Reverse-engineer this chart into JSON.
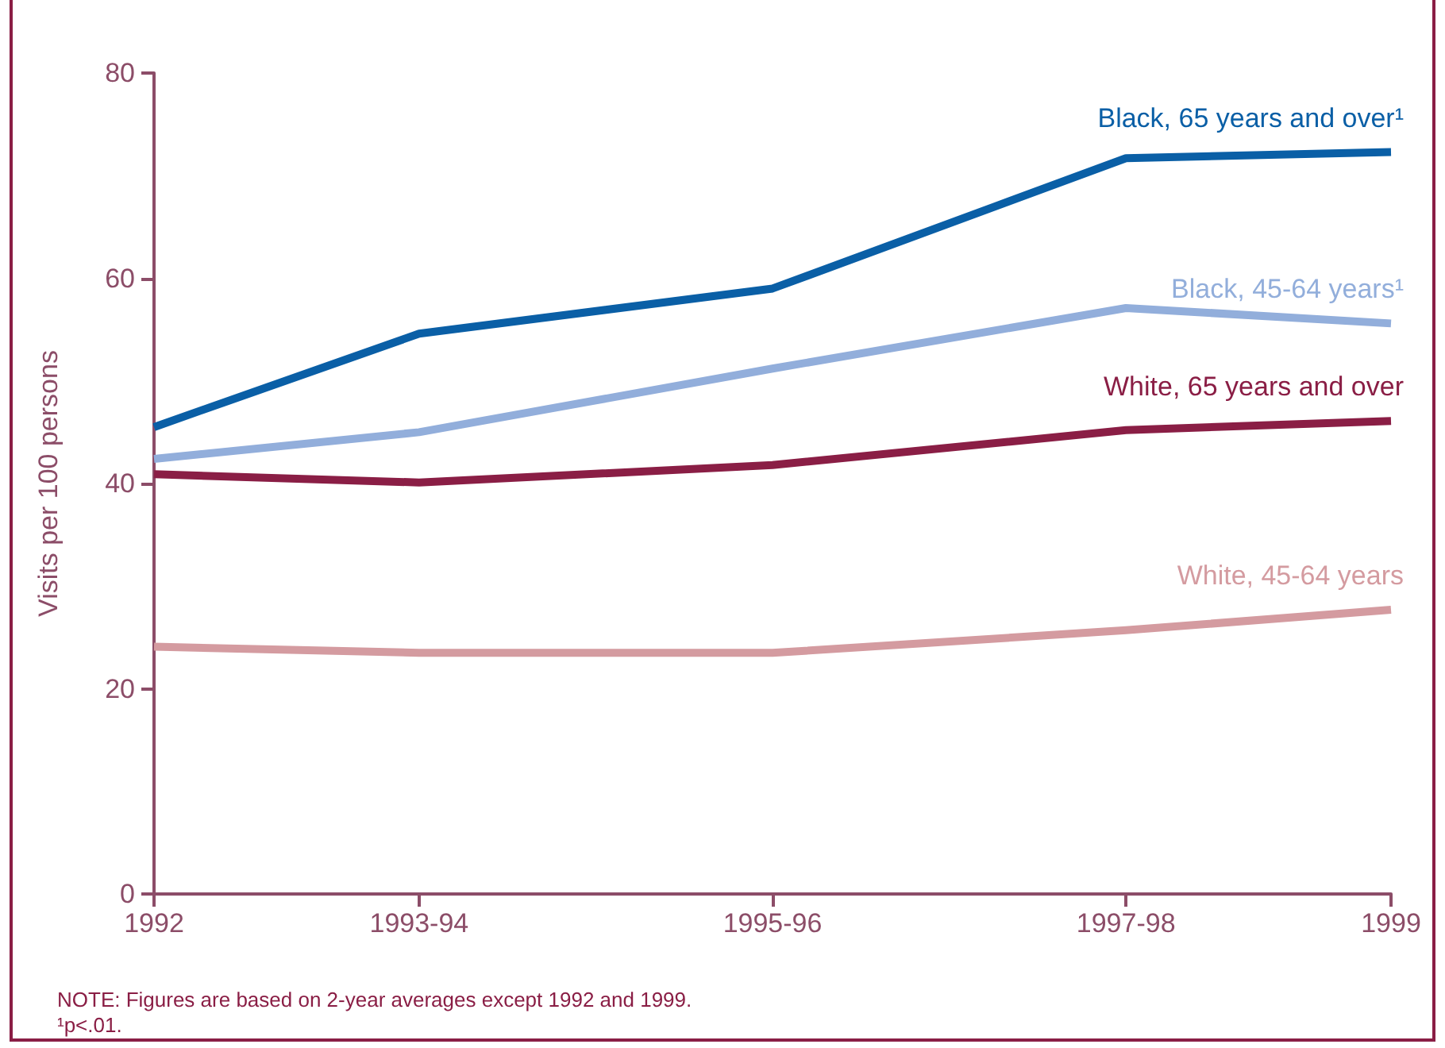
{
  "chart_data": {
    "type": "line",
    "ylabel": "Visits per 100 persons",
    "x": [
      1992,
      1993.5,
      1995.5,
      1997.5,
      1999
    ],
    "xlim": [
      1992,
      1999
    ],
    "xticks": [
      {
        "value": 1992,
        "label": "1992"
      },
      {
        "value": 1993.5,
        "label": "1993-94"
      },
      {
        "value": 1995.5,
        "label": "1995-96"
      },
      {
        "value": 1997.5,
        "label": "1997-98"
      },
      {
        "value": 1999,
        "label": "1999"
      }
    ],
    "ylim": [
      0,
      80
    ],
    "yticks": [
      0,
      20,
      40,
      60,
      80
    ],
    "grid": false,
    "legend": false,
    "marker": "none",
    "line_style": "solid",
    "series": [
      {
        "name": "Black, 65 years and over¹",
        "color": "#0a5fa6",
        "values": [
          45.5,
          54.6,
          59,
          71.7,
          72.3
        ]
      },
      {
        "name": "Black, 45-64 years¹",
        "color": "#92aedb",
        "values": [
          42.4,
          45,
          51.2,
          57.1,
          55.6
        ]
      },
      {
        "name": "White, 65 years and over",
        "color": "#8a1e45",
        "values": [
          40.9,
          40.1,
          41.8,
          45.2,
          46.1
        ]
      },
      {
        "name": "White, 45-64 years",
        "color": "#d49ba0",
        "values": [
          24.1,
          23.5,
          23.5,
          25.7,
          27.7
        ]
      }
    ],
    "annotations": [
      "NOTE:  Figures are based on 2-year averages except 1992 and 1999.",
      "¹p<.01."
    ]
  }
}
